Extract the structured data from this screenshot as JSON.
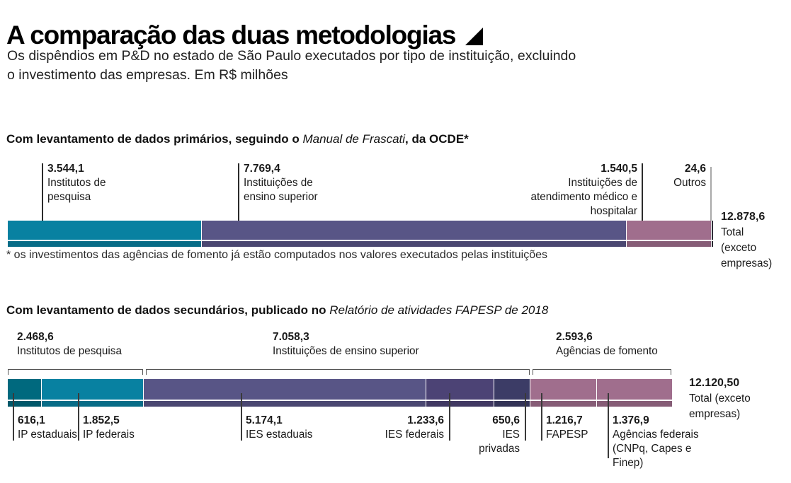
{
  "header": {
    "title": "A comparação das duas metodologias",
    "title_icon": "lower-right-triangle",
    "subtitle_line1": "Os dispêndios em P&D no estado de São Paulo executados por tipo de instituição, excluindo",
    "subtitle_line2": "o investimento das empresas. Em R$ milhões"
  },
  "chart_data": [
    {
      "type": "bar",
      "layout": "horizontal-stacked",
      "unit": "R$ milhões",
      "section_title": {
        "bold_prefix": "Com levantamento de dados primários, seguindo o ",
        "italic": "Manual de Frascati",
        "bold_suffix": ", da OCDE*"
      },
      "segments": [
        {
          "label": "Institutos de pesquisa",
          "value": 3544.1,
          "value_text": "3.544,1",
          "name_lines": [
            "Institutos de",
            "pesquisa"
          ],
          "color": "#0881a1"
        },
        {
          "label": "Instituições de ensino superior",
          "value": 7769.4,
          "value_text": "7.769,4",
          "name_lines": [
            "Instituições de",
            "ensino superior"
          ],
          "color": "#585586"
        },
        {
          "label": "Instituições de atendimento médico e hospitalar",
          "value": 1540.5,
          "value_text": "1.540,5",
          "name_lines": [
            "Instituições de",
            "atendimento médico e",
            "hospitalar"
          ],
          "color": "#a06e8d"
        },
        {
          "label": "Outros",
          "value": 24.6,
          "value_text": "24,6",
          "name_lines": [
            "Outros"
          ],
          "color": "#2e2e38"
        }
      ],
      "total": {
        "value": 12878.6,
        "value_text": "12.878,6",
        "name_lines": [
          "Total",
          "(exceto",
          "empresas)"
        ]
      },
      "footnote": "* os investimentos das agências de fomento já estão computados nos valores executados pelas instituições"
    },
    {
      "type": "bar",
      "layout": "horizontal-stacked-grouped",
      "unit": "R$ milhões",
      "section_title": {
        "bold_prefix": "Com levantamento de dados secundários, publicado no ",
        "italic": "Relatório de atividades FAPESP de 2018",
        "bold_suffix": ""
      },
      "groups": [
        {
          "label": "Institutos de pesquisa",
          "value": 2468.6,
          "value_text": "2.468,6"
        },
        {
          "label": "Instituições de ensino superior",
          "value": 7058.3,
          "value_text": "7.058,3"
        },
        {
          "label": "Agências de fomento",
          "value": 2593.6,
          "value_text": "2.593,6"
        }
      ],
      "segments": [
        {
          "label": "IP estaduais",
          "value": 616.1,
          "value_text": "616,1",
          "name_lines": [
            "IP estaduais"
          ],
          "color": "#00697e"
        },
        {
          "label": "IP federais",
          "value": 1852.5,
          "value_text": "1.852,5",
          "name_lines": [
            "IP federais"
          ],
          "color": "#0881a1"
        },
        {
          "label": "IES estaduais",
          "value": 5174.1,
          "value_text": "5.174,1",
          "name_lines": [
            "IES estaduais"
          ],
          "color": "#585586"
        },
        {
          "label": "IES federais",
          "value": 1233.6,
          "value_text": "1.233,6",
          "name_lines": [
            "IES federais"
          ],
          "color": "#4c4375"
        },
        {
          "label": "IES privadas",
          "value": 650.6,
          "value_text": "650,6",
          "name_lines": [
            "IES",
            "privadas"
          ],
          "color": "#3c3c66",
          "texture": "dots"
        },
        {
          "label": "FAPESP",
          "value": 1216.7,
          "value_text": "1.216,7",
          "name_lines": [
            "FAPESP"
          ],
          "color": "#a06e8d"
        },
        {
          "label": "Agências federais (CNPq, Capes e Finep)",
          "value": 1376.9,
          "value_text": "1.376,9",
          "name_lines": [
            "Agências federais",
            "(CNPq, Capes e",
            "Finep)"
          ],
          "color": "#a06e8d"
        }
      ],
      "total": {
        "value": 12120.5,
        "value_text": "12.120,50",
        "name_lines": [
          "Total (exceto",
          "empresas)"
        ]
      }
    }
  ]
}
